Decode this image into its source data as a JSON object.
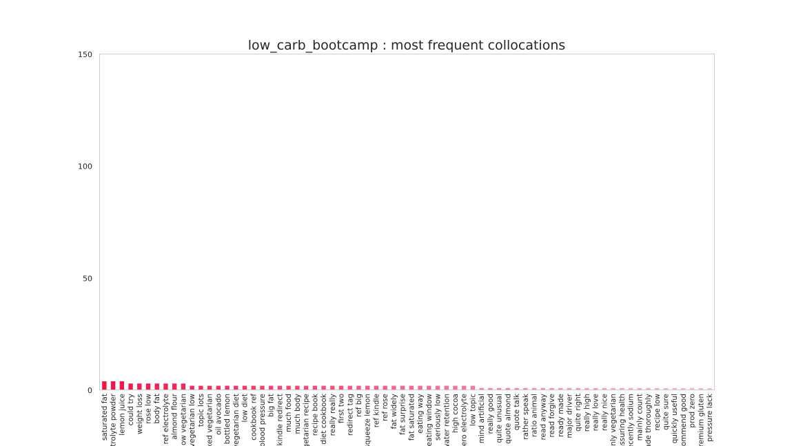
{
  "chart_data": {
    "type": "bar",
    "title": "low_carb_bootcamp : most frequent collocations",
    "xlabel": "",
    "ylabel": "",
    "ylim": [
      0,
      150
    ],
    "yticks": [
      0,
      50,
      100,
      150
    ],
    "grid": false,
    "legend": "none",
    "colors": {
      "start": "#f5114a",
      "end": "#f7bcd0"
    },
    "categories": [
      "saturated fat",
      "electrolyte powder",
      "lemon juice",
      "could try",
      "weight loss",
      "rose low",
      "body fat",
      "ref electrolyte",
      "almond flour",
      "low vegetarian",
      "vegetarian low",
      "topic lots",
      "mixed vegetarian",
      "oil avocado",
      "bottled lemon",
      "vegetarian diet",
      "low diet",
      "cookbook ref",
      "blood pressure",
      "big fat",
      "kindle redirect",
      "much food",
      "much body",
      "vegetarian recipe",
      "recipe book",
      "diet cookbook",
      "really really",
      "first two",
      "redirect tag",
      "ref big",
      "squeeze lemon",
      "ref kindle",
      "ref rose",
      "fat widely",
      "fat surprise",
      "fat saturated",
      "eating way",
      "eating window",
      "seriously low",
      "water retention",
      "high cocoa",
      "zero electrolyte",
      "low topic",
      "mind artificial",
      "really good",
      "quite unusual",
      "quote almond",
      "quote talk",
      "rather speak",
      "ratio animal",
      "read anyway",
      "read forgive",
      "ready made",
      "major driver",
      "quite right",
      "really high",
      "really love",
      "really nice",
      "mainly vegetarian",
      "reassuring health",
      "recently sodium",
      "mainly count",
      "made thoroughly",
      "recipe low",
      "quite sure",
      "quickly useful",
      "recommend good",
      "prod zero",
      "premium gluten",
      "pressure lack"
    ],
    "values": [
      4,
      4,
      4,
      3,
      3,
      3,
      3,
      3,
      3,
      3,
      2,
      2,
      2,
      2,
      2,
      2,
      2,
      2,
      2,
      2,
      2,
      2,
      2,
      2,
      2,
      2,
      2,
      2,
      2,
      2,
      2,
      2,
      2,
      2,
      2,
      2,
      2,
      2,
      2,
      2,
      2,
      2,
      2,
      1,
      1,
      1,
      1,
      1,
      1,
      1,
      1,
      1,
      1,
      1,
      1,
      1,
      1,
      1,
      1,
      1,
      1,
      1,
      1,
      1,
      1,
      1,
      1,
      1,
      1,
      1
    ]
  }
}
